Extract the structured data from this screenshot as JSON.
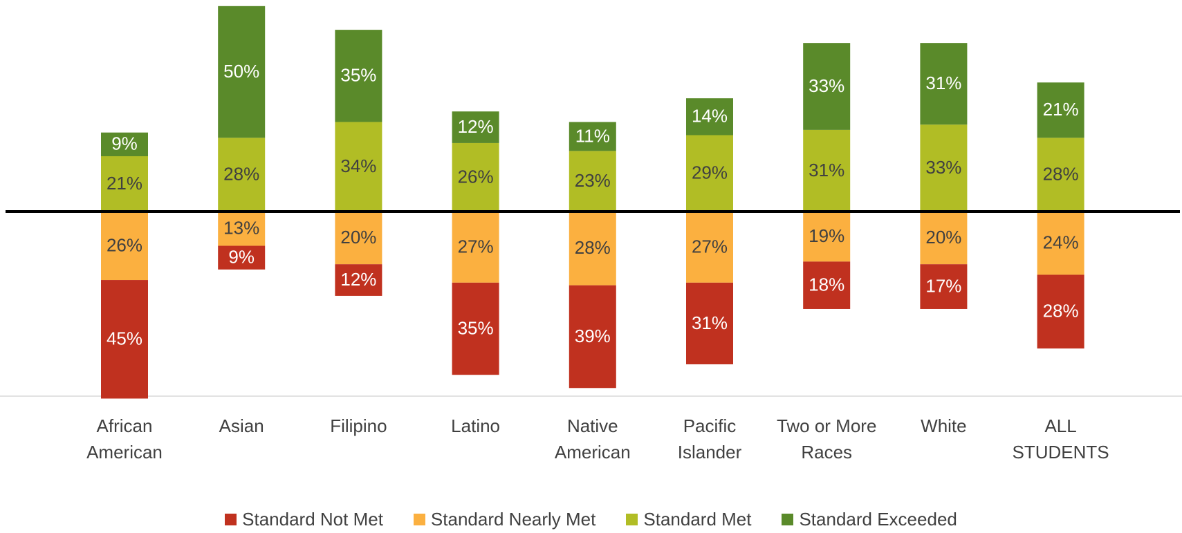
{
  "chart_data": {
    "type": "diverging_bar",
    "categories": [
      "African American",
      "Asian",
      "Filipino",
      "Latino",
      "Native American",
      "Pacific Islander",
      "Two or More Races",
      "White",
      "ALL STUDENTS"
    ],
    "series": [
      {
        "name": "Standard Not Met",
        "color": "#c0311f",
        "values": [
          45,
          9,
          12,
          35,
          39,
          31,
          18,
          17,
          28
        ],
        "value_labels": [
          "45%",
          "9%",
          "12%",
          "35%",
          "39%",
          "31%",
          "18%",
          "17%",
          "28%"
        ]
      },
      {
        "name": "Standard Nearly Met",
        "color": "#fbb040",
        "values": [
          26,
          13,
          20,
          27,
          28,
          27,
          19,
          20,
          24
        ],
        "value_labels": [
          "26%",
          "13%",
          "20%",
          "27%",
          "28%",
          "27%",
          "19%",
          "20%",
          "24%"
        ]
      },
      {
        "name": "Standard Met",
        "color": "#b1bd25",
        "values": [
          21,
          28,
          34,
          26,
          23,
          29,
          31,
          33,
          28
        ],
        "value_labels": [
          "21%",
          "28%",
          "34%",
          "26%",
          "23%",
          "29%",
          "31%",
          "33%",
          "28%"
        ]
      },
      {
        "name": "Standard Exceeded",
        "color": "#5a8a2a",
        "values": [
          9,
          50,
          35,
          12,
          11,
          14,
          33,
          31,
          21
        ],
        "value_labels": [
          "9%",
          "50%",
          "35%",
          "12%",
          "11%",
          "14%",
          "33%",
          "31%",
          "21%"
        ]
      }
    ]
  }
}
